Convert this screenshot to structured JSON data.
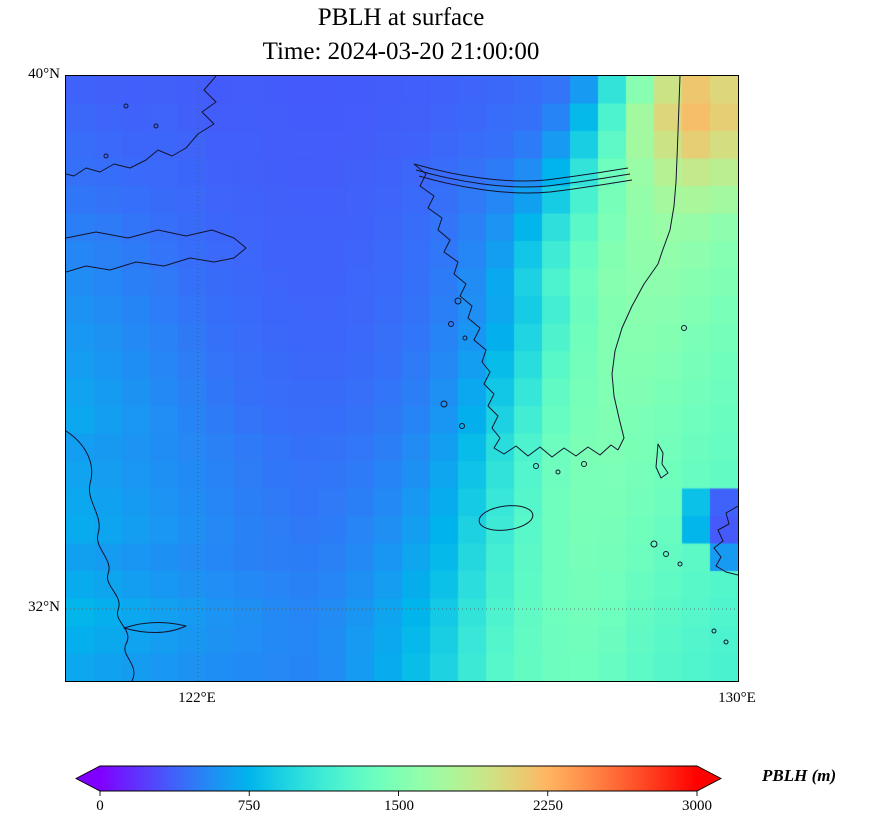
{
  "figure": {
    "kind": "geographic pcolormesh plot with colorbar"
  },
  "chart_data": {
    "type": "heatmap",
    "title": "PBLH at surface",
    "subtitle": "Time: 2024-03-20 21:00:00",
    "variable": "PBLH",
    "units": "m",
    "colormap": "rainbow",
    "vmin": 0,
    "vmax": 3000,
    "extend": "both",
    "colorbar": {
      "label": "PBLH (m)",
      "ticks": [
        "0",
        "750",
        "1500",
        "2250",
        "3000"
      ],
      "orientation": "horizontal"
    },
    "x_axis": {
      "ticks": [
        "122°E",
        "130°E"
      ],
      "approx_range_deg_east": [
        120.1,
        130.0
      ],
      "gridline_at": "122°E"
    },
    "y_axis": {
      "ticks": [
        "40°N",
        "32°N"
      ],
      "approx_range_deg_north": [
        30.9,
        40.0
      ],
      "gridline_at": "32°N"
    },
    "map_features": [
      "coastlines",
      "dotted-gridlines"
    ],
    "grid": {
      "cols": 24,
      "rows": 22,
      "row_order": "north_to_south",
      "col_order": "west_to_east",
      "units": "m",
      "values": [
        [
          380,
          370,
          365,
          370,
          360,
          350,
          355,
          350,
          345,
          345,
          350,
          355,
          365,
          375,
          390,
          400,
          420,
          450,
          620,
          1050,
          1550,
          1950,
          2150,
          2050
        ],
        [
          400,
          390,
          380,
          385,
          370,
          355,
          360,
          355,
          350,
          348,
          352,
          360,
          370,
          385,
          400,
          420,
          440,
          520,
          780,
          1200,
          1700,
          2050,
          2200,
          2100
        ],
        [
          420,
          405,
          395,
          395,
          385,
          365,
          365,
          358,
          355,
          352,
          358,
          368,
          382,
          400,
          420,
          440,
          480,
          620,
          900,
          1300,
          1700,
          1950,
          2100,
          2000
        ],
        [
          440,
          425,
          410,
          405,
          395,
          375,
          370,
          362,
          358,
          358,
          368,
          380,
          398,
          418,
          445,
          480,
          560,
          750,
          1050,
          1400,
          1650,
          1820,
          1900,
          1850
        ],
        [
          465,
          445,
          430,
          415,
          405,
          385,
          378,
          368,
          365,
          365,
          375,
          390,
          410,
          435,
          470,
          530,
          650,
          880,
          1180,
          1450,
          1620,
          1720,
          1750,
          1700
        ],
        [
          500,
          480,
          455,
          430,
          415,
          395,
          385,
          375,
          372,
          372,
          382,
          398,
          420,
          452,
          505,
          590,
          760,
          1020,
          1280,
          1480,
          1600,
          1650,
          1640,
          1580
        ],
        [
          530,
          505,
          480,
          450,
          425,
          405,
          392,
          382,
          378,
          378,
          388,
          405,
          430,
          468,
          530,
          640,
          850,
          1120,
          1350,
          1520,
          1590,
          1610,
          1580,
          1530
        ],
        [
          560,
          530,
          500,
          470,
          440,
          415,
          400,
          390,
          382,
          382,
          392,
          410,
          438,
          485,
          558,
          690,
          920,
          1200,
          1400,
          1540,
          1580,
          1580,
          1545,
          1500
        ],
        [
          585,
          555,
          525,
          490,
          455,
          425,
          408,
          395,
          388,
          388,
          398,
          418,
          448,
          500,
          570,
          680,
          880,
          1150,
          1380,
          1520,
          1560,
          1550,
          1510,
          1465
        ],
        [
          610,
          580,
          545,
          510,
          472,
          438,
          418,
          402,
          395,
          395,
          405,
          428,
          460,
          520,
          600,
          730,
          940,
          1210,
          1410,
          1520,
          1540,
          1520,
          1475,
          1435
        ],
        [
          635,
          600,
          565,
          528,
          488,
          450,
          428,
          412,
          402,
          402,
          415,
          440,
          478,
          545,
          640,
          790,
          1000,
          1270,
          1430,
          1515,
          1520,
          1490,
          1448,
          1410
        ],
        [
          660,
          622,
          585,
          545,
          505,
          465,
          440,
          422,
          412,
          412,
          428,
          455,
          498,
          572,
          685,
          855,
          1070,
          1320,
          1445,
          1510,
          1500,
          1468,
          1425,
          1390
        ],
        [
          688,
          645,
          605,
          562,
          520,
          480,
          452,
          432,
          422,
          425,
          442,
          472,
          520,
          600,
          730,
          920,
          1140,
          1355,
          1458,
          1500,
          1482,
          1445,
          1400,
          1368
        ],
        [
          640,
          615,
          590,
          560,
          535,
          505,
          478,
          455,
          440,
          445,
          462,
          495,
          550,
          642,
          790,
          1000,
          1205,
          1388,
          1472,
          1495,
          1470,
          1430,
          1382,
          1350
        ],
        [
          660,
          635,
          605,
          575,
          548,
          515,
          488,
          465,
          450,
          458,
          480,
          518,
          578,
          675,
          832,
          1040,
          1230,
          1395,
          1470,
          1482,
          1450,
          1408,
          1360,
          1330
        ],
        [
          685,
          655,
          622,
          590,
          560,
          528,
          498,
          475,
          460,
          470,
          500,
          542,
          608,
          708,
          875,
          1078,
          1252,
          1400,
          1465,
          1468,
          1430,
          1385,
          820,
          380
        ],
        [
          705,
          672,
          638,
          605,
          572,
          540,
          512,
          488,
          472,
          486,
          522,
          570,
          640,
          745,
          918,
          1112,
          1272,
          1402,
          1458,
          1452,
          1408,
          1362,
          760,
          340
        ],
        [
          650,
          625,
          600,
          578,
          552,
          530,
          512,
          495,
          485,
          505,
          546,
          600,
          675,
          782,
          960,
          1145,
          1290,
          1402,
          1448,
          1435,
          1385,
          1338,
          1290,
          620
        ],
        [
          700,
          670,
          640,
          612,
          586,
          562,
          542,
          522,
          508,
          528,
          575,
          632,
          712,
          822,
          1002,
          1175,
          1305,
          1400,
          1438,
          1418,
          1362,
          1315,
          1275,
          1240
        ],
        [
          760,
          722,
          686,
          652,
          622,
          592,
          570,
          545,
          528,
          550,
          602,
          665,
          750,
          865,
          1045,
          1205,
          1318,
          1398,
          1425,
          1398,
          1340,
          1292,
          1255,
          1222
        ],
        [
          722,
          692,
          662,
          632,
          606,
          582,
          562,
          545,
          532,
          560,
          618,
          688,
          780,
          900,
          1080,
          1232,
          1330,
          1392,
          1412,
          1378,
          1318,
          1270,
          1235,
          1205
        ],
        [
          682,
          656,
          630,
          608,
          586,
          566,
          548,
          535,
          525,
          558,
          625,
          700,
          800,
          925,
          1105,
          1258,
          1340,
          1388,
          1398,
          1358,
          1295,
          1250,
          1218,
          1188
        ]
      ]
    }
  }
}
